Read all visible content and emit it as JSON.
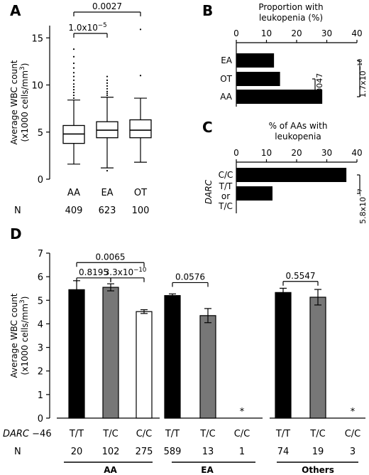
{
  "figure": {
    "panel_letters": [
      "A",
      "B",
      "C",
      "D"
    ]
  },
  "chart_data": [
    {
      "panel": "A",
      "type": "box",
      "ylabel_line1": "Average WBC count",
      "ylabel_line2": "(x1000 cells/mm",
      "ylabel_sup": "3",
      "ylabel_close": ")",
      "ylim": [
        0,
        16
      ],
      "yticks": [
        0,
        5,
        10,
        15
      ],
      "categories": [
        "AA",
        "EA",
        "OT"
      ],
      "n_label": "N",
      "n_values": [
        "409",
        "623",
        "100"
      ],
      "boxes": [
        {
          "category": "AA",
          "whisker_low": 1.6,
          "q1": 3.8,
          "median": 4.8,
          "q3": 5.7,
          "whisker_high": 8.4,
          "outliers": [
            8.6,
            8.9,
            9.2,
            9.5,
            9.8,
            10.1,
            10.5,
            10.9,
            11.3,
            11.8,
            12.3,
            13.0,
            13.8
          ]
        },
        {
          "category": "EA",
          "whisker_low": 1.2,
          "q1": 4.4,
          "median": 5.2,
          "q3": 6.1,
          "whisker_high": 8.7,
          "outliers": [
            0.9,
            8.9,
            9.1,
            9.3,
            9.6,
            9.9,
            10.2,
            10.5,
            10.9
          ]
        },
        {
          "category": "OT",
          "whisker_low": 1.8,
          "q1": 4.4,
          "median": 5.2,
          "q3": 6.3,
          "whisker_high": 8.6,
          "outliers": [
            11.0,
            15.9
          ]
        }
      ],
      "annotations": [
        {
          "from": "AA",
          "to": "OT",
          "label": "0.0027"
        },
        {
          "from": "AA",
          "to": "EA",
          "label": "1.0x10",
          "exp": "−5"
        }
      ]
    },
    {
      "panel": "B",
      "type": "bar",
      "orientation": "horizontal",
      "title_line1": "Proportion with",
      "title_line2": "leukopenia (%)",
      "xlim": [
        0,
        40
      ],
      "xticks": [
        0,
        10,
        20,
        30,
        40
      ],
      "categories": [
        "EA",
        "OT",
        "AA"
      ],
      "values": [
        12.5,
        14.5,
        28.5
      ],
      "color": "#000000",
      "annotations": [
        {
          "from": "OT",
          "to": "AA",
          "label": "0.0047"
        },
        {
          "from": "EA",
          "to": "AA",
          "label": "1.7x10",
          "exp": "−10"
        }
      ]
    },
    {
      "panel": "C",
      "type": "bar",
      "orientation": "horizontal",
      "title_line1": "% of AAs with",
      "title_line2": "leukopenia",
      "xlim": [
        0,
        40
      ],
      "xticks": [
        0,
        10,
        20,
        30,
        40
      ],
      "axis_label": "DARC",
      "categories": [
        "C/C",
        "T/T or T/C"
      ],
      "category_lines": [
        [
          "C/C"
        ],
        [
          "T/T",
          "or",
          "T/C"
        ]
      ],
      "values": [
        36.5,
        12.0
      ],
      "color": "#000000",
      "annotations": [
        {
          "label": "5.8x10",
          "exp": "−7"
        }
      ]
    },
    {
      "panel": "D",
      "type": "bar",
      "ylabel_line1": "Average WBC count",
      "ylabel_line2": "(x1000 cells/mm",
      "ylabel_sup": "3",
      "ylabel_close": ")",
      "ylim": [
        0,
        7
      ],
      "yticks": [
        0,
        1,
        2,
        3,
        4,
        5,
        6,
        7
      ],
      "genotype_label": "DARC −46",
      "n_label": "N",
      "missing_marker": "*",
      "colors": {
        "T/T": "#000000",
        "T/C": "#777777",
        "C/C": "#ffffff"
      },
      "groups": [
        {
          "name": "AA",
          "bars": [
            {
              "genotype": "T/T",
              "value": 5.45,
              "err": 0.38,
              "n": "20"
            },
            {
              "genotype": "T/C",
              "value": 5.55,
              "err": 0.15,
              "n": "102"
            },
            {
              "genotype": "C/C",
              "value": 4.52,
              "err": 0.08,
              "n": "275"
            }
          ],
          "annotations": [
            {
              "from": 0,
              "to": 2,
              "label": "0.0065",
              "y": 6.6
            },
            {
              "from": 0,
              "to": 1,
              "label": "0.8195",
              "y": 5.95
            },
            {
              "from": 1,
              "to": 2,
              "label": "3.3x10",
              "exp": "−10",
              "y": 5.95
            }
          ]
        },
        {
          "name": "EA",
          "bars": [
            {
              "genotype": "T/T",
              "value": 5.2,
              "err": 0.07,
              "n": "589"
            },
            {
              "genotype": "T/C",
              "value": 4.35,
              "err": 0.3,
              "n": "13"
            },
            {
              "genotype": "C/C",
              "value": null,
              "err": null,
              "n": "1"
            }
          ],
          "annotations": [
            {
              "from": 0,
              "to": 1,
              "label": "0.0576",
              "y": 5.75
            }
          ]
        },
        {
          "name": "Others",
          "bars": [
            {
              "genotype": "T/T",
              "value": 5.33,
              "err": 0.18,
              "n": "74"
            },
            {
              "genotype": "T/C",
              "value": 5.13,
              "err": 0.33,
              "n": "19"
            },
            {
              "genotype": "C/C",
              "value": null,
              "err": null,
              "n": "3"
            }
          ],
          "annotations": [
            {
              "from": 0,
              "to": 1,
              "label": "0.5547",
              "y": 5.8
            }
          ]
        }
      ]
    }
  ]
}
